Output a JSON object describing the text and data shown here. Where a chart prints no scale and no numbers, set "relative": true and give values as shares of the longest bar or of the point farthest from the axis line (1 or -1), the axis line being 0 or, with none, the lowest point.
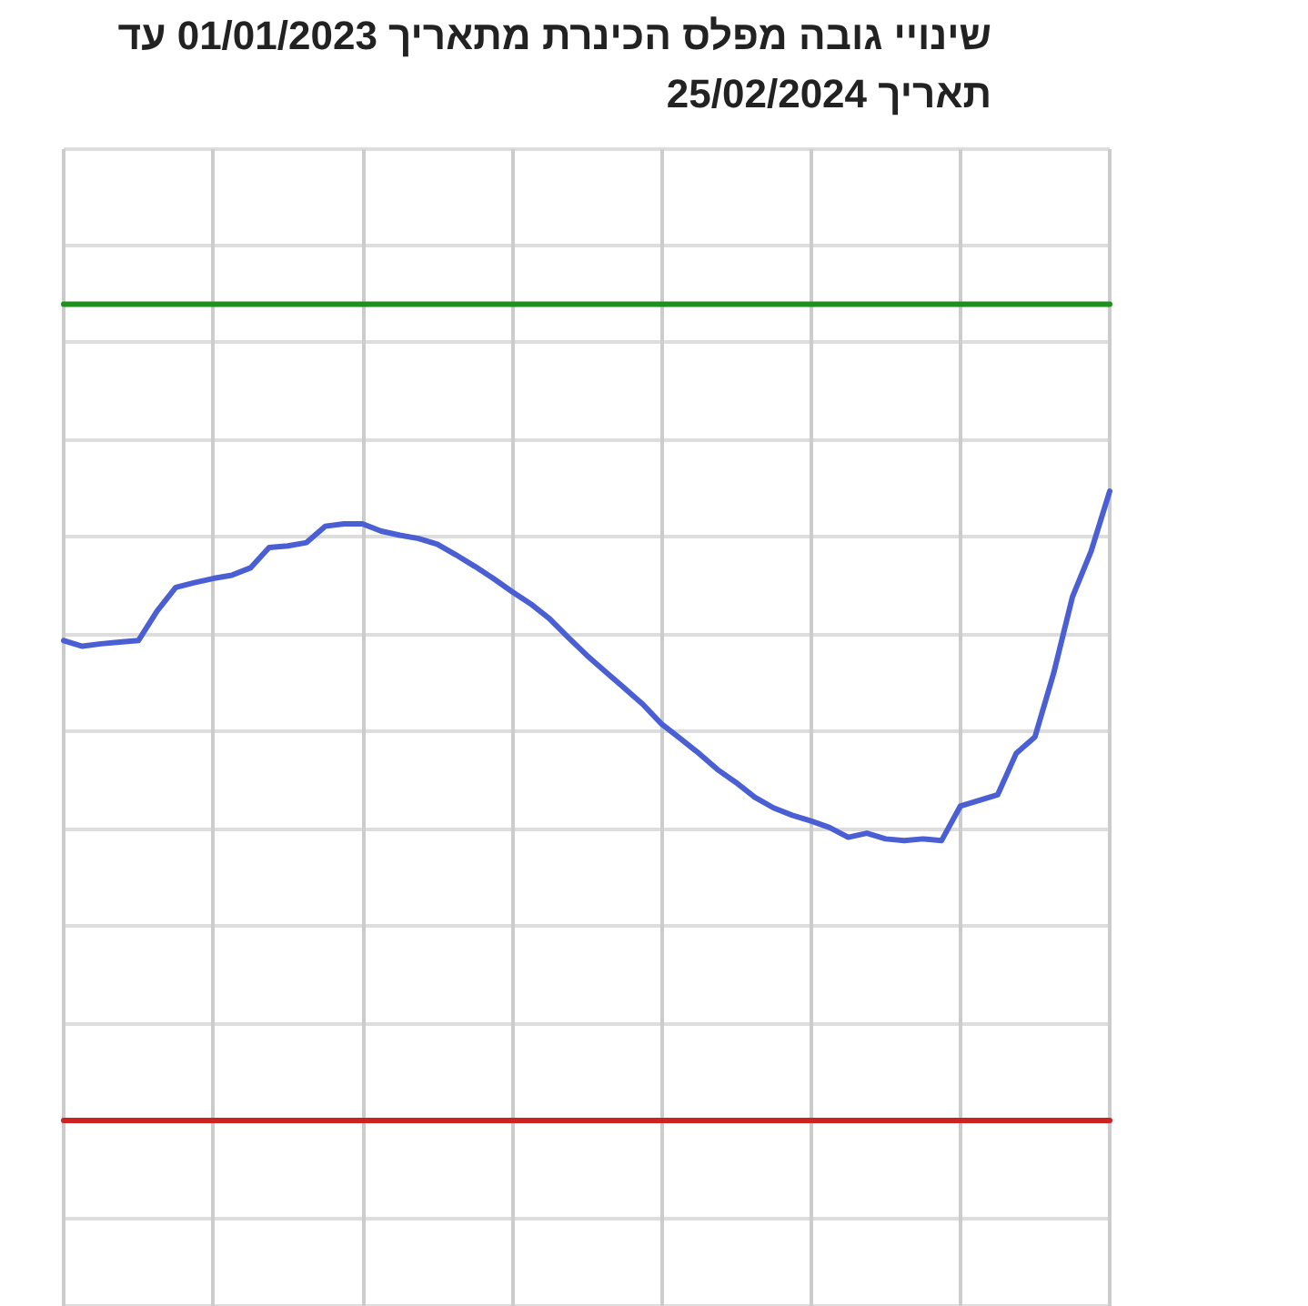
{
  "chart_data": {
    "type": "line",
    "title": "שינויי גובה מפלס הכינרת מתאריך 01/01/2023 עד תאריך 25/02/2024",
    "relative": true,
    "grid": true,
    "marker": "none",
    "line_style": "solid",
    "categories": [
      null,
      null,
      null,
      null,
      null,
      null,
      null,
      null,
      null,
      null,
      null,
      null,
      null,
      null,
      null,
      null,
      null,
      null,
      null,
      null,
      null,
      null,
      null,
      null,
      null,
      null,
      null,
      null,
      null,
      null,
      null,
      null,
      null,
      null,
      null,
      null,
      null,
      null,
      null,
      null,
      null,
      null,
      null,
      null,
      null,
      null,
      null,
      null,
      null,
      null,
      null,
      null,
      null,
      null,
      null,
      null,
      null
    ],
    "series": [
      {
        "color": "#4a5fd4",
        "values": [
          0.588,
          0.581,
          0.584,
          0.586,
          0.588,
          0.624,
          0.653,
          0.659,
          0.664,
          0.668,
          0.677,
          0.702,
          0.704,
          0.708,
          0.728,
          0.731,
          0.731,
          0.722,
          0.717,
          0.713,
          0.706,
          0.693,
          0.679,
          0.664,
          0.648,
          0.633,
          0.615,
          0.592,
          0.57,
          0.55,
          0.53,
          0.51,
          0.486,
          0.468,
          0.45,
          0.43,
          0.414,
          0.396,
          0.383,
          0.374,
          0.367,
          0.359,
          0.347,
          0.352,
          0.345,
          0.343,
          0.345,
          0.343,
          0.385,
          0.392,
          0.399,
          0.45,
          0.47,
          0.548,
          0.641,
          0.697,
          0.771
        ]
      },
      {
        "color": "#1f8f1f",
        "values": [
          1,
          1,
          1,
          1,
          1,
          1,
          1,
          1,
          1,
          1,
          1,
          1,
          1,
          1,
          1,
          1,
          1,
          1,
          1,
          1,
          1,
          1,
          1,
          1,
          1,
          1,
          1,
          1,
          1,
          1,
          1,
          1,
          1,
          1,
          1,
          1,
          1,
          1,
          1,
          1,
          1,
          1,
          1,
          1,
          1,
          1,
          1,
          1,
          1,
          1,
          1,
          1,
          1,
          1,
          1,
          1,
          1
        ]
      },
      {
        "color": "#cc2222",
        "values": [
          0,
          0,
          0,
          0,
          0,
          0,
          0,
          0,
          0,
          0,
          0,
          0,
          0,
          0,
          0,
          0,
          0,
          0,
          0,
          0,
          0,
          0,
          0,
          0,
          0,
          0,
          0,
          0,
          0,
          0,
          0,
          0,
          0,
          0,
          0,
          0,
          0,
          0,
          0,
          0,
          0,
          0,
          0,
          0,
          0,
          0,
          0,
          0,
          0,
          0,
          0,
          0,
          0,
          0,
          0,
          0,
          0
        ]
      }
    ]
  }
}
